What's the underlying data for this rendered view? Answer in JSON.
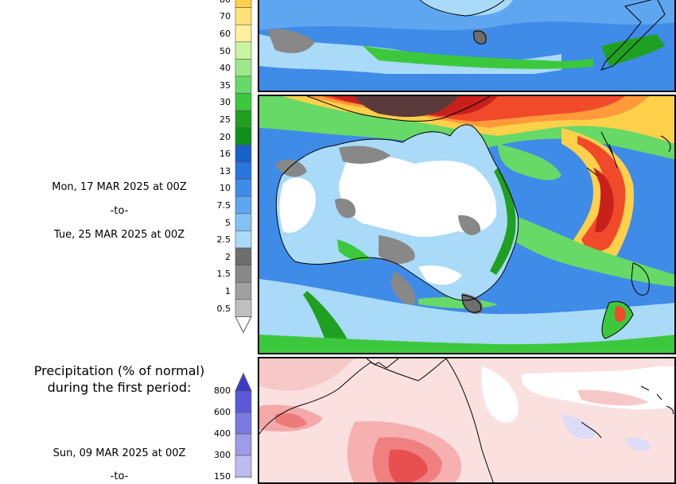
{
  "colorbar_precip": {
    "ticks": [
      "80",
      "70",
      "60",
      "50",
      "40",
      "35",
      "30",
      "25",
      "20",
      "16",
      "13",
      "10",
      "7.5",
      "5",
      "2.5",
      "2",
      "1.5",
      "1",
      "0.5"
    ],
    "colors": [
      "#ffd04a",
      "#ffe27a",
      "#fff0a0",
      "#c8f5a0",
      "#9ce88a",
      "#66d966",
      "#3cc83c",
      "#20a020",
      "#10901a",
      "#1b5fc9",
      "#2a74df",
      "#3f8be8",
      "#5ea6f0",
      "#84c1f5",
      "#a9daf8",
      "#6e6e6e",
      "#888888",
      "#a0a0a0",
      "#bfbfbf"
    ]
  },
  "period_second": {
    "start": "Mon, 17 MAR 2025 at 00Z",
    "separator": "-to-",
    "end": "Tue, 25 MAR 2025 at 00Z"
  },
  "anomaly_section": {
    "title_line1": "Precipitation (% of normal)",
    "title_line2": "during the first period:",
    "start": "Sun, 09 MAR 2025 at 00Z",
    "separator": "-to-"
  },
  "colorbar_anomaly": {
    "ticks": [
      "800",
      "600",
      "400",
      "300",
      "150"
    ],
    "colors": [
      "#5a5ad8",
      "#7a7ae0",
      "#9c9ce8",
      "#bcbcf0",
      "#dcdcf8"
    ]
  }
}
